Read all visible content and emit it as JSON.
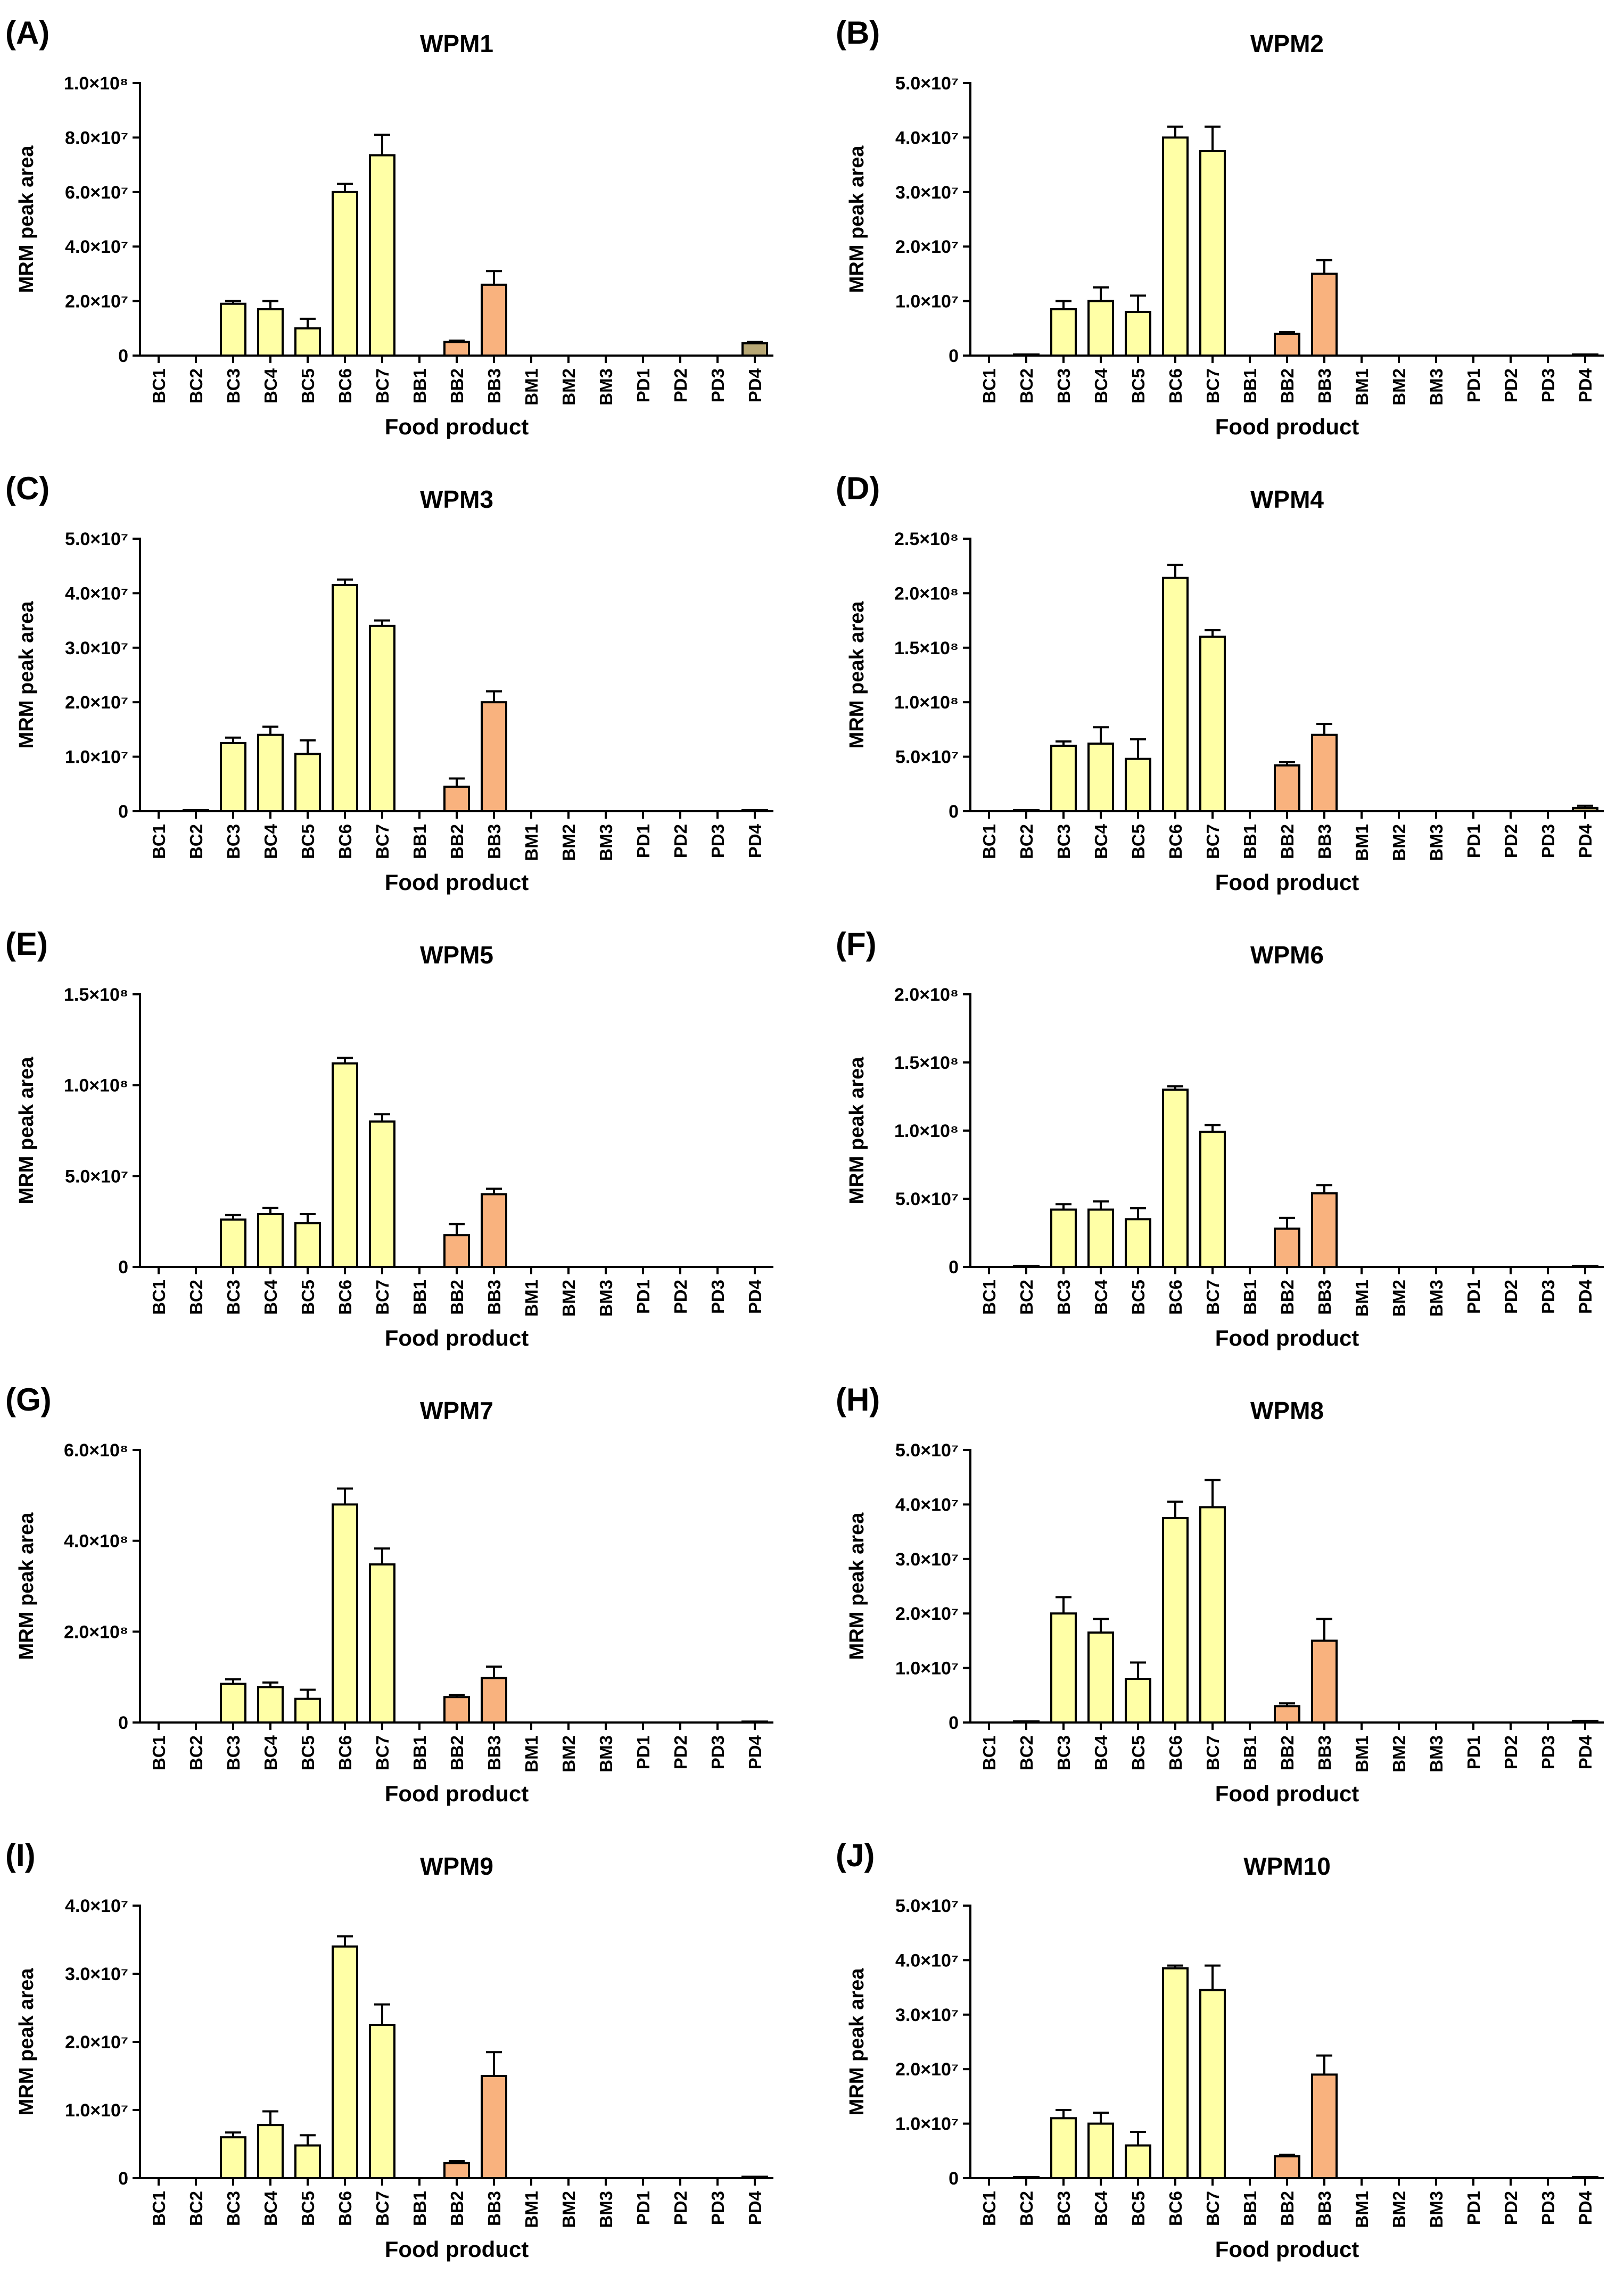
{
  "figure": {
    "x_axis_label": "Food product",
    "y_axis_label": "MRM peak area",
    "colors": {
      "bc": "#FFFFA6",
      "bb": "#F9B27E",
      "pd": "#B8A875",
      "stroke": "#000000"
    }
  },
  "chart_data": [
    {
      "type": "bar",
      "letter": "(A)",
      "title": "WPM1",
      "categories": [
        "BC1",
        "BC2",
        "BC3",
        "BC4",
        "BC5",
        "BC6",
        "BC7",
        "BB1",
        "BB2",
        "BB3",
        "BM1",
        "BM2",
        "BM3",
        "PD1",
        "PD2",
        "PD3",
        "PD4"
      ],
      "values": [
        0,
        0,
        19000000,
        17000000,
        10000000,
        60000000,
        73500000,
        0,
        5000000,
        26000000,
        0,
        0,
        0,
        0,
        0,
        0,
        4500000
      ],
      "errors": [
        0,
        0,
        1000000,
        3000000,
        3500000,
        3000000,
        7500000,
        0,
        500000,
        5000000,
        0,
        0,
        0,
        0,
        0,
        0,
        500000
      ],
      "ylim": [
        0,
        100000000
      ],
      "ytick_values": [
        0,
        20000000,
        40000000,
        60000000,
        80000000,
        100000000
      ],
      "ytick_labels": [
        "0",
        "2.0×10⁷",
        "4.0×10⁷",
        "6.0×10⁷",
        "8.0×10⁷",
        "1.0×10⁸"
      ],
      "xlabel": "Food product",
      "ylabel": "MRM peak area"
    },
    {
      "type": "bar",
      "letter": "(B)",
      "title": "WPM2",
      "categories": [
        "BC1",
        "BC2",
        "BC3",
        "BC4",
        "BC5",
        "BC6",
        "BC7",
        "BB1",
        "BB2",
        "BB3",
        "BM1",
        "BM2",
        "BM3",
        "PD1",
        "PD2",
        "PD3",
        "PD4"
      ],
      "values": [
        0,
        200000,
        8500000,
        10000000,
        8000000,
        40000000,
        37500000,
        0,
        4000000,
        15000000,
        0,
        0,
        0,
        0,
        0,
        0,
        200000
      ],
      "errors": [
        0,
        0,
        1500000,
        2500000,
        3000000,
        2000000,
        4500000,
        0,
        300000,
        2500000,
        0,
        0,
        0,
        0,
        0,
        0,
        0
      ],
      "ylim": [
        0,
        50000000
      ],
      "ytick_values": [
        0,
        10000000,
        20000000,
        30000000,
        40000000,
        50000000
      ],
      "ytick_labels": [
        "0",
        "1.0×10⁷",
        "2.0×10⁷",
        "3.0×10⁷",
        "4.0×10⁷",
        "5.0×10⁷"
      ],
      "xlabel": "Food product",
      "ylabel": "MRM peak area"
    },
    {
      "type": "bar",
      "letter": "(C)",
      "title": "WPM3",
      "categories": [
        "BC1",
        "BC2",
        "BC3",
        "BC4",
        "BC5",
        "BC6",
        "BC7",
        "BB1",
        "BB2",
        "BB3",
        "BM1",
        "BM2",
        "BM3",
        "PD1",
        "PD2",
        "PD3",
        "PD4"
      ],
      "values": [
        0,
        200000,
        12500000,
        14000000,
        10500000,
        41500000,
        34000000,
        0,
        4500000,
        20000000,
        0,
        0,
        0,
        0,
        0,
        0,
        200000
      ],
      "errors": [
        0,
        0,
        1000000,
        1500000,
        2500000,
        1000000,
        1000000,
        0,
        1500000,
        2000000,
        0,
        0,
        0,
        0,
        0,
        0,
        0
      ],
      "ylim": [
        0,
        50000000
      ],
      "ytick_values": [
        0,
        10000000,
        20000000,
        30000000,
        40000000,
        50000000
      ],
      "ytick_labels": [
        "0",
        "1.0×10⁷",
        "2.0×10⁷",
        "3.0×10⁷",
        "4.0×10⁷",
        "5.0×10⁷"
      ],
      "xlabel": "Food product",
      "ylabel": "MRM peak area"
    },
    {
      "type": "bar",
      "letter": "(D)",
      "title": "WPM4",
      "categories": [
        "BC1",
        "BC2",
        "BC3",
        "BC4",
        "BC5",
        "BC6",
        "BC7",
        "BB1",
        "BB2",
        "BB3",
        "BM1",
        "BM2",
        "BM3",
        "PD1",
        "PD2",
        "PD3",
        "PD4"
      ],
      "values": [
        0,
        1000000,
        60000000,
        62000000,
        48000000,
        214000000,
        160000000,
        0,
        42000000,
        70000000,
        0,
        0,
        0,
        0,
        0,
        0,
        3000000
      ],
      "errors": [
        0,
        0,
        4000000,
        15000000,
        18000000,
        12000000,
        6000000,
        0,
        3000000,
        10000000,
        0,
        0,
        0,
        0,
        0,
        0,
        2000000
      ],
      "ylim": [
        0,
        250000000
      ],
      "ytick_values": [
        0,
        50000000,
        100000000,
        150000000,
        200000000,
        250000000
      ],
      "ytick_labels": [
        "0",
        "5.0×10⁷",
        "1.0×10⁸",
        "1.5×10⁸",
        "2.0×10⁸",
        "2.5×10⁸"
      ],
      "xlabel": "Food product",
      "ylabel": "MRM peak area"
    },
    {
      "type": "bar",
      "letter": "(E)",
      "title": "WPM5",
      "categories": [
        "BC1",
        "BC2",
        "BC3",
        "BC4",
        "BC5",
        "BC6",
        "BC7",
        "BB1",
        "BB2",
        "BB3",
        "BM1",
        "BM2",
        "BM3",
        "PD1",
        "PD2",
        "PD3",
        "PD4"
      ],
      "values": [
        0,
        0,
        26000000,
        29000000,
        24000000,
        112000000,
        80000000,
        0,
        17500000,
        40000000,
        0,
        0,
        0,
        0,
        0,
        0,
        0
      ],
      "errors": [
        0,
        0,
        2500000,
        3500000,
        5000000,
        3000000,
        4000000,
        0,
        6000000,
        3000000,
        0,
        0,
        0,
        0,
        0,
        0,
        0
      ],
      "ylim": [
        0,
        150000000
      ],
      "ytick_values": [
        0,
        50000000,
        100000000,
        150000000
      ],
      "ytick_labels": [
        "0",
        "5.0×10⁷",
        "1.0×10⁸",
        "1.5×10⁸"
      ],
      "xlabel": "Food product",
      "ylabel": "MRM peak area"
    },
    {
      "type": "bar",
      "letter": "(F)",
      "title": "WPM6",
      "categories": [
        "BC1",
        "BC2",
        "BC3",
        "BC4",
        "BC5",
        "BC6",
        "BC7",
        "BB1",
        "BB2",
        "BB3",
        "BM1",
        "BM2",
        "BM3",
        "PD1",
        "PD2",
        "PD3",
        "PD4"
      ],
      "values": [
        0,
        500000,
        42000000,
        42000000,
        35000000,
        130000000,
        99000000,
        0,
        28000000,
        54000000,
        0,
        0,
        0,
        0,
        0,
        0,
        500000
      ],
      "errors": [
        0,
        0,
        4000000,
        6000000,
        8000000,
        2500000,
        5000000,
        0,
        8000000,
        6000000,
        0,
        0,
        0,
        0,
        0,
        0,
        0
      ],
      "ylim": [
        0,
        200000000
      ],
      "ytick_values": [
        0,
        50000000,
        100000000,
        150000000,
        200000000
      ],
      "ytick_labels": [
        "0",
        "5.0×10⁷",
        "1.0×10⁸",
        "1.5×10⁸",
        "2.0×10⁸"
      ],
      "xlabel": "Food product",
      "ylabel": "MRM peak area"
    },
    {
      "type": "bar",
      "letter": "(G)",
      "title": "WPM7",
      "categories": [
        "BC1",
        "BC2",
        "BC3",
        "BC4",
        "BC5",
        "BC6",
        "BC7",
        "BB1",
        "BB2",
        "BB3",
        "BM1",
        "BM2",
        "BM3",
        "PD1",
        "PD2",
        "PD3",
        "PD4"
      ],
      "values": [
        0,
        0,
        85000000,
        78000000,
        52000000,
        480000000,
        348000000,
        0,
        56000000,
        98000000,
        0,
        0,
        0,
        0,
        0,
        0,
        2000000
      ],
      "errors": [
        0,
        0,
        10000000,
        10000000,
        20000000,
        35000000,
        35000000,
        0,
        5000000,
        25000000,
        0,
        0,
        0,
        0,
        0,
        0,
        0
      ],
      "ylim": [
        0,
        600000000
      ],
      "ytick_values": [
        0,
        200000000,
        400000000,
        600000000
      ],
      "ytick_labels": [
        "0",
        "2.0×10⁸",
        "4.0×10⁸",
        "6.0×10⁸"
      ],
      "xlabel": "Food product",
      "ylabel": "MRM peak area"
    },
    {
      "type": "bar",
      "letter": "(H)",
      "title": "WPM8",
      "categories": [
        "BC1",
        "BC2",
        "BC3",
        "BC4",
        "BC5",
        "BC6",
        "BC7",
        "BB1",
        "BB2",
        "BB3",
        "BM1",
        "BM2",
        "BM3",
        "PD1",
        "PD2",
        "PD3",
        "PD4"
      ],
      "values": [
        0,
        200000,
        20000000,
        16500000,
        8000000,
        37500000,
        39500000,
        0,
        3000000,
        15000000,
        0,
        0,
        0,
        0,
        0,
        0,
        300000
      ],
      "errors": [
        0,
        0,
        3000000,
        2500000,
        3000000,
        3000000,
        5000000,
        0,
        500000,
        4000000,
        0,
        0,
        0,
        0,
        0,
        0,
        0
      ],
      "ylim": [
        0,
        50000000
      ],
      "ytick_values": [
        0,
        10000000,
        20000000,
        30000000,
        40000000,
        50000000
      ],
      "ytick_labels": [
        "0",
        "1.0×10⁷",
        "2.0×10⁷",
        "3.0×10⁷",
        "4.0×10⁷",
        "5.0×10⁷"
      ],
      "xlabel": "Food product",
      "ylabel": "MRM peak area"
    },
    {
      "type": "bar",
      "letter": "(I)",
      "title": "WPM9",
      "categories": [
        "BC1",
        "BC2",
        "BC3",
        "BC4",
        "BC5",
        "BC6",
        "BC7",
        "BB1",
        "BB2",
        "BB3",
        "BM1",
        "BM2",
        "BM3",
        "PD1",
        "PD2",
        "PD3",
        "PD4"
      ],
      "values": [
        0,
        0,
        6000000,
        7800000,
        4800000,
        34000000,
        22500000,
        0,
        2200000,
        15000000,
        0,
        0,
        0,
        0,
        0,
        0,
        200000
      ],
      "errors": [
        0,
        0,
        700000,
        2000000,
        1500000,
        1500000,
        3000000,
        0,
        300000,
        3500000,
        0,
        0,
        0,
        0,
        0,
        0,
        0
      ],
      "ylim": [
        0,
        40000000
      ],
      "ytick_values": [
        0,
        10000000,
        20000000,
        30000000,
        40000000
      ],
      "ytick_labels": [
        "0",
        "1.0×10⁷",
        "2.0×10⁷",
        "3.0×10⁷",
        "4.0×10⁷"
      ],
      "xlabel": "Food product",
      "ylabel": "MRM peak area"
    },
    {
      "type": "bar",
      "letter": "(J)",
      "title": "WPM10",
      "categories": [
        "BC1",
        "BC2",
        "BC3",
        "BC4",
        "BC5",
        "BC6",
        "BC7",
        "BB1",
        "BB2",
        "BB3",
        "BM1",
        "BM2",
        "BM3",
        "PD1",
        "PD2",
        "PD3",
        "PD4"
      ],
      "values": [
        0,
        200000,
        11000000,
        10000000,
        6000000,
        38500000,
        34500000,
        0,
        4000000,
        19000000,
        0,
        0,
        0,
        0,
        0,
        0,
        200000
      ],
      "errors": [
        0,
        0,
        1500000,
        2000000,
        2500000,
        500000,
        4500000,
        0,
        300000,
        3500000,
        0,
        0,
        0,
        0,
        0,
        0,
        0
      ],
      "ylim": [
        0,
        50000000
      ],
      "ytick_values": [
        0,
        10000000,
        20000000,
        30000000,
        40000000,
        50000000
      ],
      "ytick_labels": [
        "0",
        "1.0×10⁷",
        "2.0×10⁷",
        "3.0×10⁷",
        "4.0×10⁷",
        "5.0×10⁷"
      ],
      "xlabel": "Food product",
      "ylabel": "MRM peak area"
    }
  ]
}
